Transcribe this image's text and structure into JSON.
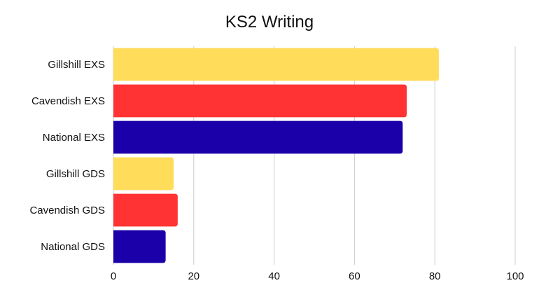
{
  "chart_data": {
    "type": "bar",
    "orientation": "horizontal",
    "title": "KS2 Writing",
    "xlabel": "",
    "ylabel": "",
    "categories": [
      "Gillshill EXS",
      "Cavendish EXS",
      "National EXS",
      "Gillshill GDS",
      "Cavendish GDS",
      "National GDS"
    ],
    "values": [
      81,
      73,
      72,
      15,
      16,
      13
    ],
    "colors": [
      "#FFDC5A",
      "#FF3333",
      "#1B00AA",
      "#FFDC5A",
      "#FF3333",
      "#1B00AA"
    ],
    "xlim": [
      0,
      100
    ],
    "xticks": [
      "0",
      "20",
      "40",
      "60",
      "80",
      "100"
    ],
    "grid": true,
    "legend": "none"
  }
}
